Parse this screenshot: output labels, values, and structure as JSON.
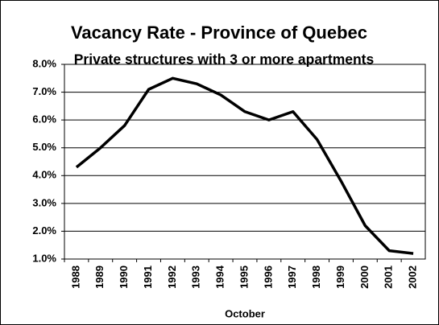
{
  "chart_data": {
    "type": "line",
    "title": "Vacancy Rate - Province of Quebec",
    "subtitle": "Private structures with 3 or more apartments",
    "x_label": "October",
    "categories": [
      "1988",
      "1989",
      "1990",
      "1991",
      "1992",
      "1993",
      "1994",
      "1995",
      "1996",
      "1997",
      "1998",
      "1999",
      "2000",
      "2001",
      "2002"
    ],
    "series": [
      {
        "color": "#000000",
        "values": [
          4.3,
          5.0,
          5.8,
          7.1,
          7.5,
          7.3,
          6.9,
          6.3,
          6.0,
          6.3,
          5.3,
          3.8,
          2.2,
          1.3,
          1.2
        ]
      }
    ],
    "ylim": [
      1,
      8
    ],
    "yticks": [
      {
        "value": 1,
        "label": "1.0%"
      },
      {
        "value": 2,
        "label": "2.0%"
      },
      {
        "value": 3,
        "label": "3.0%"
      },
      {
        "value": 4,
        "label": "4.0%"
      },
      {
        "value": 5,
        "label": "5.0%"
      },
      {
        "value": 6,
        "label": "6.0%"
      },
      {
        "value": 7,
        "label": "7.0%"
      },
      {
        "value": 8,
        "label": "8.0%"
      }
    ],
    "grid": true
  }
}
